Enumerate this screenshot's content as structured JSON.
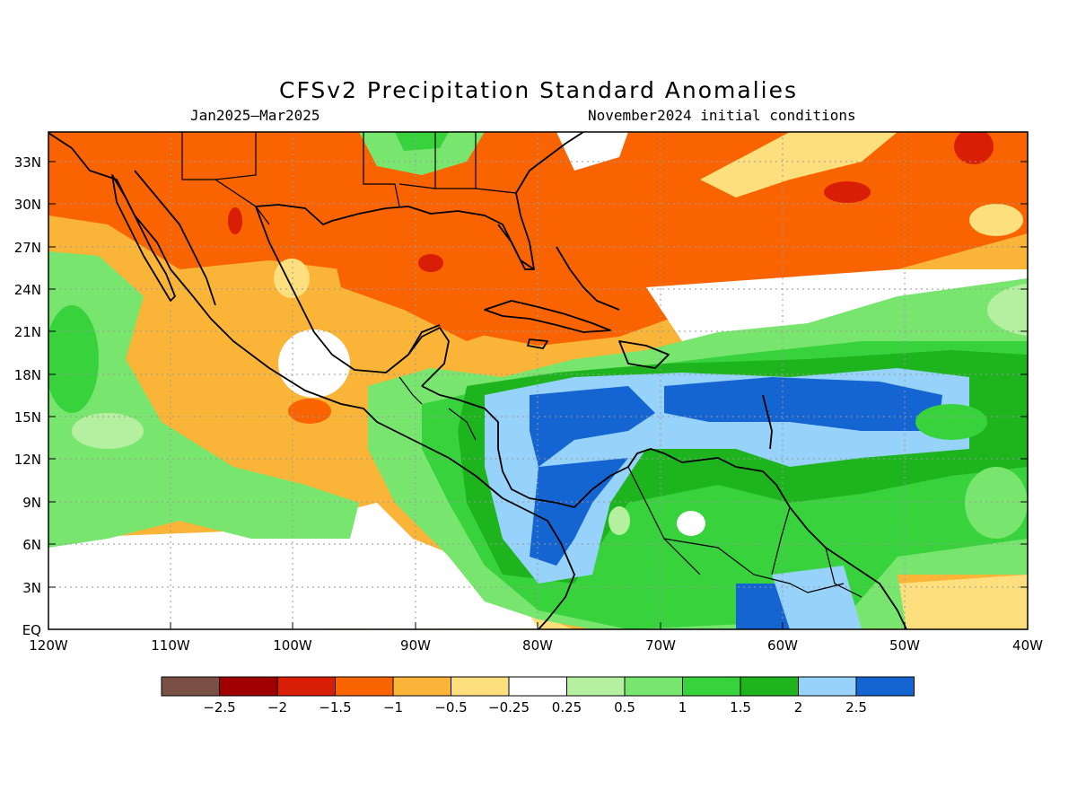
{
  "title": "CFSv2 Precipitation Standard Anomalies",
  "period": "Jan2025–Mar2025",
  "initial_conditions": "November2024 initial conditions",
  "axes": {
    "x_ticks": [
      "120W",
      "110W",
      "100W",
      "90W",
      "80W",
      "70W",
      "60W",
      "50W",
      "40W"
    ],
    "y_ticks": [
      "33N",
      "30N",
      "27N",
      "24N",
      "21N",
      "18N",
      "15N",
      "12N",
      "9N",
      "6N",
      "3N",
      "EQ"
    ]
  },
  "colorbar": {
    "labels": [
      "−2.5",
      "−2",
      "−1.5",
      "−1",
      "−0.5",
      "−0.25",
      "0.25",
      "0.5",
      "1",
      "1.5",
      "2",
      "2.5"
    ],
    "colors": [
      "#7a5046",
      "#a00000",
      "#d81e05",
      "#fa6400",
      "#fab437",
      "#fde07d",
      "#ffffff",
      "#b4f0a0",
      "#78e66e",
      "#37d23c",
      "#1eb41e",
      "#96d2fa",
      "#1464d2"
    ]
  },
  "colors": {
    "background": "#ffffff",
    "coast": "#000000",
    "grid": "#9a9a9a"
  }
}
